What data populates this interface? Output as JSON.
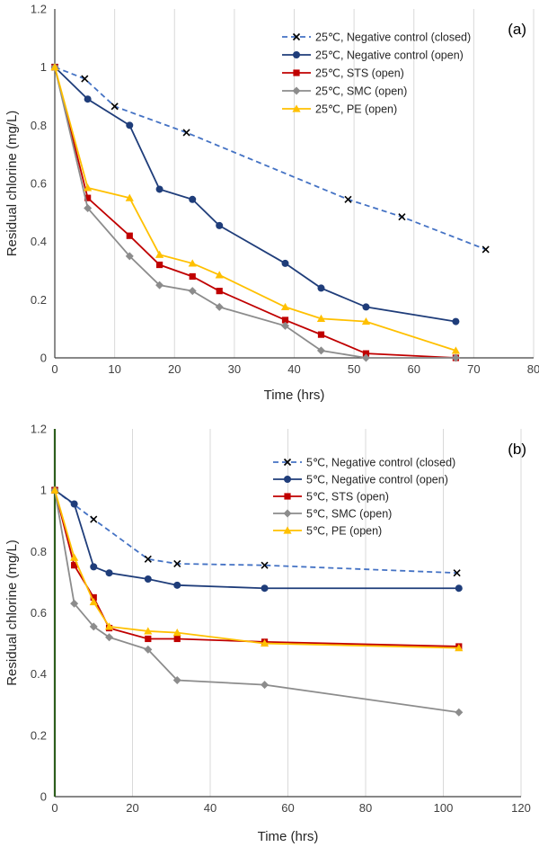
{
  "chart_data": [
    {
      "type": "line",
      "panel_label": "(a)",
      "xlabel": "Time (hrs)",
      "ylabel": "Residual chlorine (mg/L)",
      "xlim": [
        0,
        80
      ],
      "ylim": [
        0,
        1.2
      ],
      "xticks": [
        0,
        10,
        20,
        30,
        40,
        50,
        60,
        70,
        80
      ],
      "yticks": [
        0,
        0.2,
        0.4,
        0.6,
        0.8,
        1,
        1.2
      ],
      "y_tick_labels": [
        "0",
        "0.2",
        "0.4",
        "0.6",
        "0.8",
        "1",
        "1.2"
      ],
      "grid": "vertical",
      "legend_position": "top-right",
      "series": [
        {
          "name": "25℃, Negative control (closed)",
          "color": "#4472C4",
          "dash": true,
          "marker": "x",
          "x": [
            0,
            5,
            10,
            22,
            49,
            58,
            72
          ],
          "y": [
            1.0,
            0.96,
            0.865,
            0.775,
            0.545,
            0.485,
            0.373
          ]
        },
        {
          "name": "25℃, Negative control (open)",
          "color": "#1F3D7A",
          "dash": false,
          "marker": "circle",
          "x": [
            0,
            5.5,
            12.5,
            17.5,
            23,
            27.5,
            38.5,
            44.5,
            52,
            67
          ],
          "y": [
            1.0,
            0.89,
            0.8,
            0.58,
            0.545,
            0.455,
            0.325,
            0.24,
            0.175,
            0.125
          ]
        },
        {
          "name": "25℃, STS (open)",
          "color": "#C00000",
          "dash": false,
          "marker": "square",
          "x": [
            0,
            5.5,
            12.5,
            17.5,
            23,
            27.5,
            38.5,
            44.5,
            52,
            67
          ],
          "y": [
            1.0,
            0.55,
            0.42,
            0.32,
            0.28,
            0.23,
            0.13,
            0.08,
            0.015,
            0.0
          ]
        },
        {
          "name": "25℃, SMC (open)",
          "color": "#8C8C8C",
          "dash": false,
          "marker": "diamond",
          "x": [
            0,
            5.5,
            12.5,
            17.5,
            23,
            27.5,
            38.5,
            44.5,
            52,
            67
          ],
          "y": [
            1.0,
            0.515,
            0.35,
            0.25,
            0.23,
            0.175,
            0.11,
            0.025,
            0.0,
            0.0
          ]
        },
        {
          "name": "25℃, PE (open)",
          "color": "#FFC000",
          "dash": false,
          "marker": "triangle",
          "x": [
            0,
            5.5,
            12.5,
            17.5,
            23,
            27.5,
            38.5,
            44.5,
            52,
            67
          ],
          "y": [
            1.0,
            0.585,
            0.55,
            0.355,
            0.325,
            0.285,
            0.175,
            0.135,
            0.125,
            0.025
          ]
        }
      ]
    },
    {
      "type": "line",
      "panel_label": "(b)",
      "xlabel": "Time (hrs)",
      "ylabel": "Residual chlorine (mg/L)",
      "xlim": [
        0,
        120
      ],
      "ylim": [
        0,
        1.2
      ],
      "xticks": [
        0,
        20,
        40,
        60,
        80,
        100,
        120
      ],
      "yticks": [
        0,
        0.2,
        0.4,
        0.6,
        0.8,
        1,
        1.2
      ],
      "y_tick_labels": [
        "0",
        "0.2",
        "0.4",
        "0.6",
        "0.8",
        "1",
        "1.2"
      ],
      "grid": "vertical",
      "legend_position": "top-right",
      "series": [
        {
          "name": "5℃, Negative control (closed)",
          "color": "#4472C4",
          "dash": true,
          "marker": "x",
          "x": [
            0,
            10,
            24,
            31.5,
            54,
            103.5
          ],
          "y": [
            1.0,
            0.905,
            0.775,
            0.76,
            0.755,
            0.73
          ]
        },
        {
          "name": "5℃, Negative control (open)",
          "color": "#1F3D7A",
          "dash": false,
          "marker": "circle",
          "x": [
            0,
            5,
            10,
            14,
            24,
            31.5,
            54,
            104
          ],
          "y": [
            1.0,
            0.955,
            0.75,
            0.73,
            0.71,
            0.69,
            0.68,
            0.68
          ]
        },
        {
          "name": "5℃, STS (open)",
          "color": "#C00000",
          "dash": false,
          "marker": "square",
          "x": [
            0,
            5,
            10,
            14,
            24,
            31.5,
            54,
            104
          ],
          "y": [
            1.0,
            0.755,
            0.65,
            0.55,
            0.515,
            0.515,
            0.505,
            0.49
          ]
        },
        {
          "name": "5℃, SMC (open)",
          "color": "#8C8C8C",
          "dash": false,
          "marker": "diamond",
          "x": [
            0,
            5,
            10,
            14,
            24,
            31.5,
            54,
            104
          ],
          "y": [
            1.0,
            0.63,
            0.555,
            0.52,
            0.48,
            0.38,
            0.365,
            0.275
          ]
        },
        {
          "name": "5℃, PE (open)",
          "color": "#FFC000",
          "dash": false,
          "marker": "triangle",
          "x": [
            0,
            5,
            10,
            14,
            24,
            31.5,
            54,
            104
          ],
          "y": [
            1.0,
            0.78,
            0.635,
            0.555,
            0.54,
            0.535,
            0.5,
            0.485
          ]
        }
      ]
    }
  ]
}
